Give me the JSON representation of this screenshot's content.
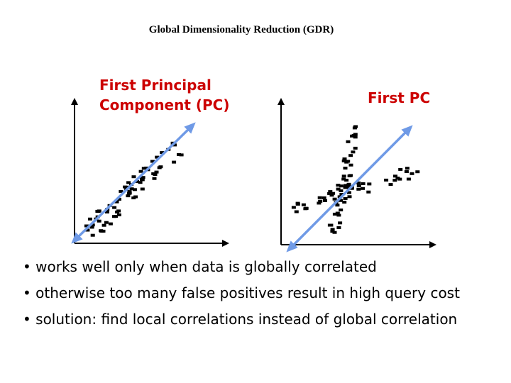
{
  "title": "Global Dimensionality Reduction (GDR)",
  "left_plot": {
    "label": "First Principal\nComponent (PC)"
  },
  "right_plot": {
    "label": "First PC"
  },
  "colors": {
    "label": "#cc0000",
    "pc_line": "#6f9ae6",
    "axis": "#000000",
    "points": "#000000"
  },
  "bullets": [
    "• works well only when data is globally correlated",
    "• otherwise too many false positives result in high query cost",
    "• solution: find local correlations instead of global correlation"
  ]
}
